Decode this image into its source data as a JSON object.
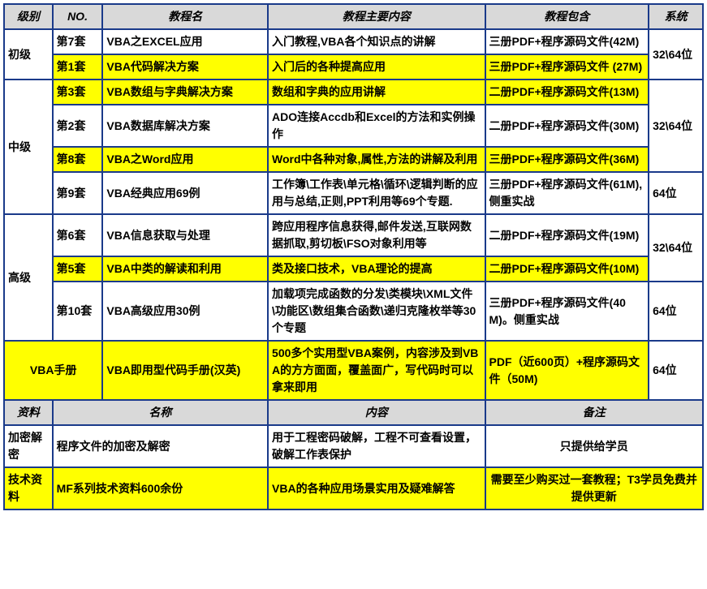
{
  "header1": {
    "level": "级别",
    "no": "NO.",
    "name": "教程名",
    "content": "教程主要内容",
    "include": "教程包含",
    "sys": "系统"
  },
  "rows1": [
    {
      "level": "初级",
      "span": 2,
      "sys": "32\\64位",
      "sysspan": 2,
      "cells": [
        {
          "no": "第7套",
          "name": "VBA之EXCEL应用",
          "content": "入门教程,VBA各个知识点的讲解",
          "incl": "三册PDF+程序源码文件(42M)",
          "bg": "wht"
        },
        {
          "no": "第1套",
          "name": "VBA代码解决方案",
          "content": "入门后的各种提高应用",
          "incl": "三册PDF+程序源码文件 (27M)",
          "bg": "yel"
        }
      ]
    },
    {
      "level": "中级",
      "span": 4,
      "sys": "32\\64位",
      "sysspan": 3,
      "cells": [
        {
          "no": "第3套",
          "name": "VBA数组与字典解决方案",
          "content": "数组和字典的应用讲解",
          "incl": "二册PDF+程序源码文件(13M)",
          "bg": "yel"
        },
        {
          "no": "第2套",
          "name": "VBA数据库解决方案",
          "content": "ADO连接Accdb和Excel的方法和实例操作",
          "incl": "二册PDF+程序源码文件(30M)",
          "bg": "wht"
        },
        {
          "no": "第8套",
          "name": "VBA之Word应用",
          "content": "Word中各种对象,属性,方法的讲解及利用",
          "incl": "三册PDF+程序源码文件(36M)",
          "bg": "yel"
        },
        {
          "no": "第9套",
          "name": "VBA经典应用69例",
          "content": "工作簿\\工作表\\单元格\\循环\\逻辑判断的应用与总结,正则,PPT利用等69个专题.",
          "incl": "三册PDF+程序源码文件(61M),侧重实战",
          "bg": "wht",
          "sys": "64位"
        }
      ]
    },
    {
      "level": "高级",
      "span": 3,
      "sys": "32\\64位",
      "sysspan": 2,
      "cells": [
        {
          "no": "第6套",
          "name": "VBA信息获取与处理",
          "content": "跨应用程序信息获得,邮件发送,互联网数据抓取,剪切板\\FSO对象利用等",
          "incl": "二册PDF+程序源码文件(19M)",
          "bg": "wht"
        },
        {
          "no": "第5套",
          "name": "VBA中类的解读和利用",
          "content": "类及接口技术，VBA理论的提高",
          "incl": "二册PDF+程序源码文件(10M)",
          "bg": "yel"
        },
        {
          "no": "第10套",
          "name": "VBA高级应用30例",
          "content": "加载项完成函数的分发\\类模块\\XML文件\\功能区\\数组集合函数\\递归克隆枚举等30个专题",
          "incl": "三册PDF+程序源码文件(40M)。侧重实战",
          "bg": "wht",
          "sys": "64位"
        }
      ]
    }
  ],
  "manual": {
    "level": "VBA手册",
    "name": "VBA即用型代码手册(汉英)",
    "content": "500多个实用型VBA案例，内容涉及到VBA的方方面面，覆盖面广，写代码时可以拿来即用",
    "incl": "PDF（近600页）+程序源码文件（50M)",
    "sys": "64位"
  },
  "header2": {
    "c1": "资料",
    "c2": "名称",
    "c3": "内容",
    "c4": "备注"
  },
  "rows2": [
    {
      "c1": "加密解密",
      "c2": "程序文件的加密及解密",
      "c3": "用于工程密码破解，工程不可查看设置，破解工作表保护",
      "c4": "只提供给学员",
      "bg": "wht"
    },
    {
      "c1": "技术资料",
      "c2": "MF系列技术资料600余份",
      "c3": "VBA的各种应用场景实用及疑难解答",
      "c4": "需要至少购买过一套教程；T3学员免费并提供更新",
      "bg": "yel"
    }
  ],
  "colors": {
    "header_bg": "#d9d9d9",
    "yellow": "#ffff00",
    "border": "#1a3a8a"
  }
}
